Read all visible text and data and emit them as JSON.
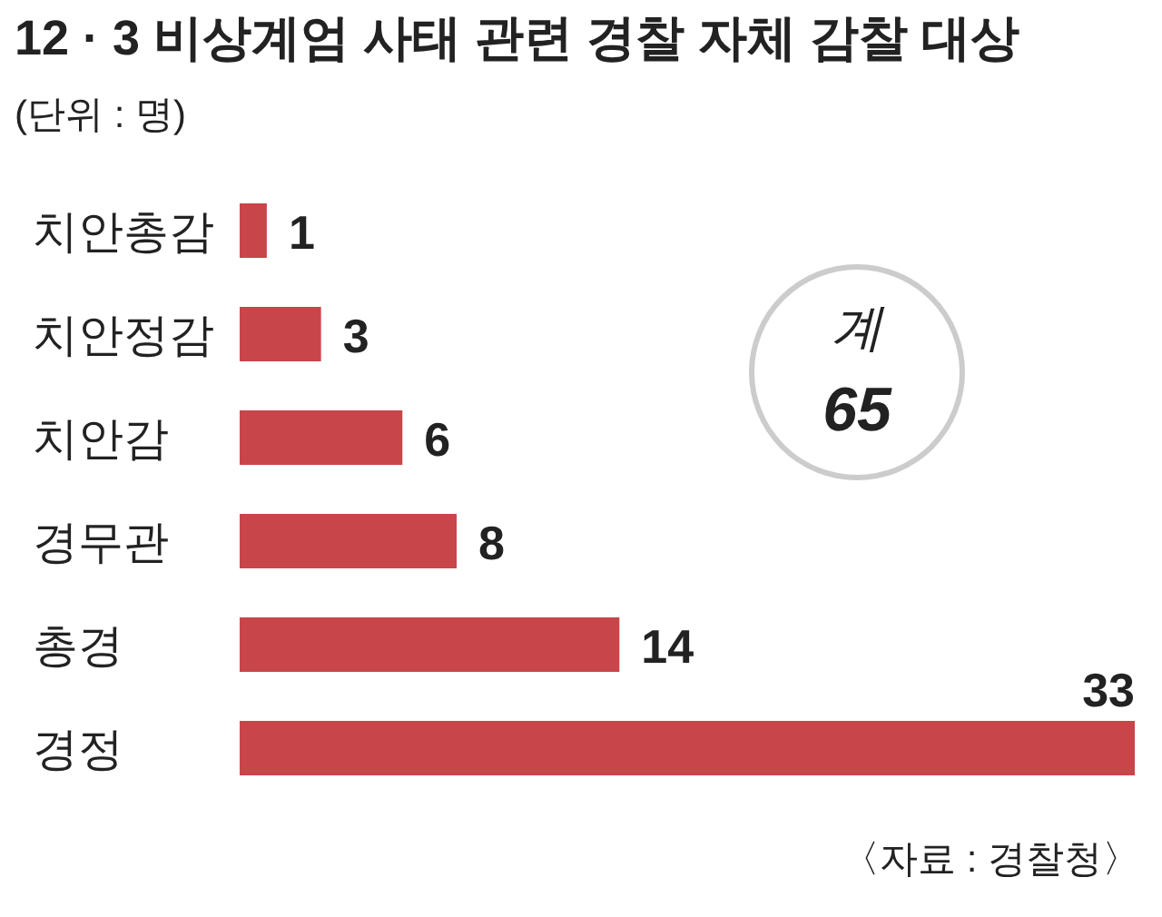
{
  "chart_data": {
    "type": "bar",
    "orientation": "horizontal",
    "title": "12 · 3 비상계엄 사태 관련 경찰 자체 감찰 대상",
    "subtitle": "(단위 : 명)",
    "categories": [
      "치안총감",
      "치안정감",
      "치안감",
      "경무관",
      "총경",
      "경정"
    ],
    "values": [
      1,
      3,
      6,
      8,
      14,
      33
    ],
    "color": "#c8454a",
    "data_labels": true,
    "annotations": [
      "계",
      "65",
      "〈자료 : 경찰청〉"
    ]
  }
}
